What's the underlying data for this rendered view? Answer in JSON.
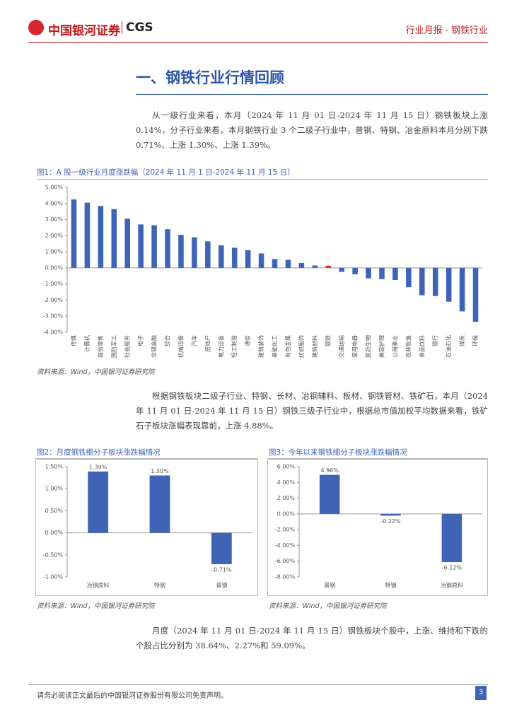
{
  "header": {
    "logo": "中国银河证券",
    "logo_en": "CGS",
    "report_type": "行业月报 · 钢铁行业"
  },
  "section_title": "一、钢铁行业行情回顾",
  "paragraphs": [
    "从一级行业来看，本月（2024 年 11 月 01 日-2024 年 11 月 15 日）钢铁板块上涨 0.14%，分子行业来看，本月钢铁行业 3 个二级子行业中，普钢、特钢、冶金原料本月分别下跌 0.71%、上涨 1.30%、上涨 1.39%。",
    "根据钢铁板块二级子行业、特钢、长材、冶钢辅料、板材、钢铁管材、铁矿石，本月（2024 年 11 月 01 日-2024 年 11 月 15 日）钢铁三级子行业中，根据总市值加权平均数据来看，铁矿石子板块涨幅表现靠前，上涨 4.88%。",
    "月度（2024 年 11 月 01 日-2024 年 11 月 15 日）钢铁板块个股中，上涨、维持和下跌的个股占比分别为 38.64%、2.27%和 59.09%。"
  ],
  "figures": [
    {
      "title": "图1：A 股一级行业月度涨跌幅（2024 年 11 月 1 日-2024 年 11 月 15 日）",
      "source": "资料来源：Wind，中国银河证券研究院",
      "chart": {
        "type": "bar",
        "categories": [
          "传媒",
          "计算机",
          "商贸零售",
          "国防军工",
          "社会服务",
          "电子",
          "非银金融",
          "综合",
          "机械设备",
          "汽车",
          "房地产",
          "电力设备",
          "轻工制造",
          "通信",
          "建筑装饰",
          "基础化工",
          "有色金属",
          "纺织服饰",
          "建筑材料",
          "钢铁",
          "交通运输",
          "家用电器",
          "医药生物",
          "美容护理",
          "公用事业",
          "农林牧渔",
          "食品饮料",
          "银行",
          "石油石化",
          "煤炭",
          "环保"
        ],
        "values": [
          4.25,
          4.05,
          3.85,
          3.65,
          3.05,
          2.7,
          2.65,
          2.4,
          2.05,
          1.9,
          1.65,
          1.4,
          1.25,
          1.1,
          0.9,
          0.55,
          0.5,
          0.3,
          0.15,
          0.14,
          -0.25,
          -0.4,
          -0.65,
          -0.7,
          -0.75,
          -1.2,
          -1.7,
          -1.75,
          -2.1,
          -2.7,
          -3.35
        ],
        "color": "#3f64b5",
        "highlight": "钢铁",
        "highlight_color": "#e8302a",
        "ylim": [
          -4,
          5
        ],
        "yticks": [
          {
            "value": -4,
            "label": "-4.00%"
          },
          {
            "value": -3,
            "label": "-3.00%"
          },
          {
            "value": -2,
            "label": "-2.00%"
          },
          {
            "value": -1,
            "label": "-1.00%"
          },
          {
            "value": 0,
            "label": "0.00%"
          },
          {
            "value": 1,
            "label": "1.00%"
          },
          {
            "value": 2,
            "label": "2.00%"
          },
          {
            "value": 3,
            "label": "3.00%"
          },
          {
            "value": 4,
            "label": "4.00%"
          },
          {
            "value": 5,
            "label": "5.00%"
          }
        ]
      }
    },
    {
      "title": "图2：月度钢铁细分子板块涨跌幅情况",
      "source": "资料来源：Wind，中国银河证券研究院",
      "chart": {
        "type": "bar",
        "categories": [
          "冶钢原料",
          "特钢",
          "普钢"
        ],
        "values": [
          1.39,
          1.3,
          -0.71
        ],
        "value_labels": [
          "1.39%",
          "1.30%",
          "-0.71%"
        ],
        "color": "#3f64b5",
        "ylim": [
          -1,
          1.5
        ],
        "yticks": [
          {
            "value": -1,
            "label": "-1.00%"
          },
          {
            "value": -0.5,
            "label": "-0.50%"
          },
          {
            "value": 0,
            "label": "0.00%"
          },
          {
            "value": 0.5,
            "label": "0.50%"
          },
          {
            "value": 1,
            "label": "1.00%"
          },
          {
            "value": 1.5,
            "label": "1.50%"
          }
        ]
      }
    },
    {
      "title": "图3：今年以来钢铁细分子板块涨跌幅情况",
      "source": "资料来源：Wind，中国银河证券研究院",
      "chart": {
        "type": "bar",
        "categories": [
          "普钢",
          "特钢",
          "冶钢原料"
        ],
        "values": [
          4.96,
          -0.22,
          -6.12
        ],
        "value_labels": [
          "4.96%",
          "-0.22%",
          "-6.12%"
        ],
        "color": "#3f64b5",
        "ylim": [
          -8,
          6
        ],
        "yticks": [
          {
            "value": -8,
            "label": "-8.00%"
          },
          {
            "value": -6,
            "label": "-6.00%"
          },
          {
            "value": -4,
            "label": "-4.00%"
          },
          {
            "value": -2,
            "label": "-2.00%"
          },
          {
            "value": 0,
            "label": "0.00%"
          },
          {
            "value": 2,
            "label": "2.00%"
          },
          {
            "value": 4,
            "label": "4.00%"
          },
          {
            "value": 6,
            "label": "6.00%"
          }
        ]
      }
    }
  ],
  "footer": {
    "disclaimer": "请务必阅读正文最后的中国银河证券股份有限公司免责声明。",
    "page": "3"
  }
}
